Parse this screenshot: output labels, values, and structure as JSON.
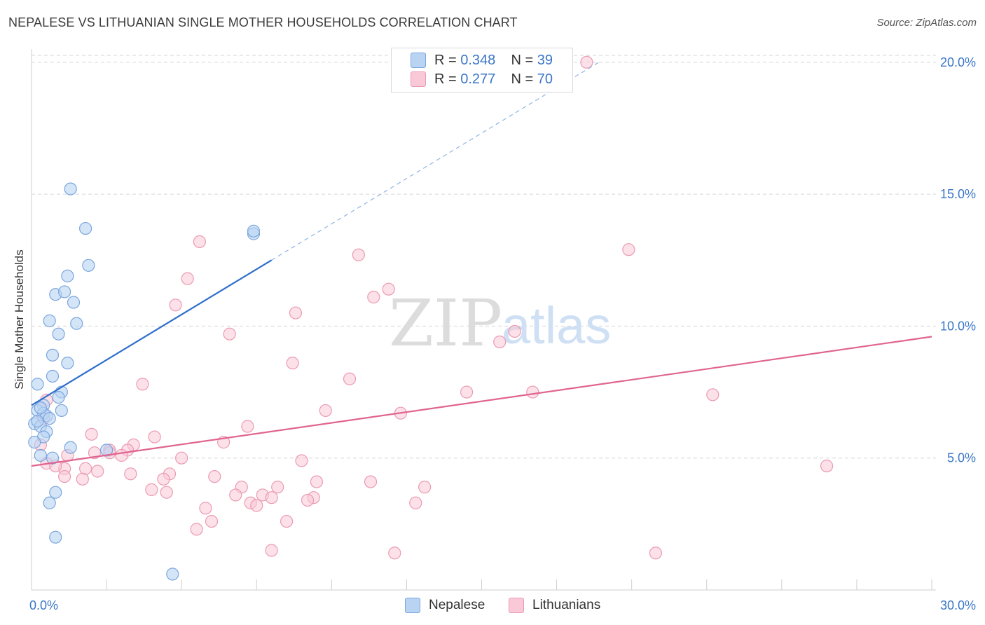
{
  "title": "NEPALESE VS LITHUANIAN SINGLE MOTHER HOUSEHOLDS CORRELATION CHART",
  "source": "Source: ZipAtlas.com",
  "watermark": {
    "zip": "ZIP",
    "atlas": "atlas"
  },
  "legend_top": [
    {
      "r_label": "R = ",
      "r_value": "0.348",
      "n_label": "N = ",
      "n_value": "39"
    },
    {
      "r_label": "R = ",
      "r_value": "0.277",
      "n_label": "N = ",
      "n_value": "70"
    }
  ],
  "colors": {
    "nepalese_fill": "#b9d3f3",
    "nepalese_stroke": "#7aa6dd",
    "nepalese_line": "#2f6fca",
    "lithuanian_fill": "#f9c9d7",
    "lithuanian_stroke": "#eb9ab3",
    "lithuanian_line": "#e0648f",
    "grid": "#d6d6d6",
    "axis_text": "#3a76c8"
  },
  "chart_data": {
    "type": "scatter",
    "title": "NEPALESE VS LITHUANIAN SINGLE MOTHER HOUSEHOLDS CORRELATION CHART",
    "xlabel": "",
    "ylabel": "Single Mother Households",
    "xlim": [
      0,
      30
    ],
    "ylim": [
      0,
      20.5
    ],
    "x_tick_labels": [
      "0.0%",
      "30.0%"
    ],
    "y_ticks": [
      5,
      10,
      15,
      20
    ],
    "y_tick_labels": [
      "5.0%",
      "10.0%",
      "15.0%",
      "20.0%"
    ],
    "legend": [
      "Nepalese",
      "Lithuanians"
    ],
    "series": [
      {
        "name": "Nepalese",
        "r": 0.348,
        "n": 39,
        "trend": {
          "x0": 0.0,
          "y0": 7.0,
          "x1": 8.0,
          "y1": 12.5,
          "dash_to_x": 18.9
        },
        "points": [
          [
            1.3,
            15.2
          ],
          [
            1.8,
            13.7
          ],
          [
            7.4,
            13.5
          ],
          [
            7.4,
            13.6
          ],
          [
            1.9,
            12.3
          ],
          [
            1.2,
            11.9
          ],
          [
            0.8,
            11.2
          ],
          [
            1.1,
            11.3
          ],
          [
            1.4,
            10.9
          ],
          [
            0.6,
            10.2
          ],
          [
            1.5,
            10.1
          ],
          [
            0.9,
            9.7
          ],
          [
            0.7,
            8.9
          ],
          [
            1.2,
            8.6
          ],
          [
            0.7,
            8.1
          ],
          [
            0.2,
            7.8
          ],
          [
            1.0,
            7.5
          ],
          [
            0.9,
            7.3
          ],
          [
            0.4,
            7.0
          ],
          [
            0.2,
            6.8
          ],
          [
            0.4,
            6.7
          ],
          [
            1.0,
            6.8
          ],
          [
            0.5,
            6.6
          ],
          [
            0.6,
            6.5
          ],
          [
            0.1,
            6.3
          ],
          [
            0.3,
            6.2
          ],
          [
            0.5,
            6.0
          ],
          [
            0.4,
            5.8
          ],
          [
            0.1,
            5.6
          ],
          [
            1.3,
            5.4
          ],
          [
            2.5,
            5.3
          ],
          [
            0.3,
            5.1
          ],
          [
            0.7,
            5.0
          ],
          [
            0.8,
            3.7
          ],
          [
            0.6,
            3.3
          ],
          [
            0.8,
            2.0
          ],
          [
            4.7,
            0.6
          ],
          [
            0.3,
            6.9
          ],
          [
            0.2,
            6.4
          ]
        ]
      },
      {
        "name": "Lithuanians",
        "r": 0.277,
        "n": 70,
        "trend": {
          "x0": 0.0,
          "y0": 4.7,
          "x1": 30.0,
          "y1": 9.6
        },
        "points": [
          [
            18.5,
            20.0
          ],
          [
            5.6,
            13.2
          ],
          [
            10.9,
            12.7
          ],
          [
            19.9,
            12.9
          ],
          [
            5.2,
            11.8
          ],
          [
            11.9,
            11.4
          ],
          [
            11.4,
            11.1
          ],
          [
            4.8,
            10.8
          ],
          [
            8.8,
            10.5
          ],
          [
            6.6,
            9.7
          ],
          [
            16.1,
            9.8
          ],
          [
            15.6,
            9.4
          ],
          [
            8.7,
            8.6
          ],
          [
            10.6,
            8.0
          ],
          [
            3.7,
            7.8
          ],
          [
            14.5,
            7.5
          ],
          [
            16.7,
            7.5
          ],
          [
            22.7,
            7.4
          ],
          [
            9.8,
            6.8
          ],
          [
            12.3,
            6.7
          ],
          [
            7.2,
            6.2
          ],
          [
            2.0,
            5.9
          ],
          [
            4.1,
            5.8
          ],
          [
            6.4,
            5.6
          ],
          [
            3.4,
            5.5
          ],
          [
            2.6,
            5.3
          ],
          [
            3.2,
            5.3
          ],
          [
            2.1,
            5.2
          ],
          [
            2.6,
            5.2
          ],
          [
            3.0,
            5.1
          ],
          [
            5.0,
            5.0
          ],
          [
            9.0,
            4.9
          ],
          [
            0.5,
            4.8
          ],
          [
            1.8,
            4.6
          ],
          [
            1.1,
            4.6
          ],
          [
            0.8,
            4.7
          ],
          [
            2.2,
            4.5
          ],
          [
            3.3,
            4.4
          ],
          [
            4.6,
            4.4
          ],
          [
            1.7,
            4.2
          ],
          [
            1.1,
            4.3
          ],
          [
            4.4,
            4.2
          ],
          [
            6.1,
            4.3
          ],
          [
            9.5,
            4.1
          ],
          [
            11.3,
            4.1
          ],
          [
            7.0,
            3.9
          ],
          [
            8.2,
            3.9
          ],
          [
            13.1,
            3.9
          ],
          [
            4.0,
            3.8
          ],
          [
            4.5,
            3.7
          ],
          [
            6.8,
            3.6
          ],
          [
            7.7,
            3.6
          ],
          [
            8.0,
            3.5
          ],
          [
            9.4,
            3.5
          ],
          [
            9.2,
            3.4
          ],
          [
            7.3,
            3.3
          ],
          [
            7.5,
            3.2
          ],
          [
            12.8,
            3.3
          ],
          [
            5.8,
            3.1
          ],
          [
            6.0,
            2.6
          ],
          [
            8.5,
            2.6
          ],
          [
            5.5,
            2.3
          ],
          [
            8.0,
            1.5
          ],
          [
            12.1,
            1.4
          ],
          [
            20.8,
            1.4
          ],
          [
            26.5,
            4.7
          ],
          [
            0.3,
            5.5
          ],
          [
            0.4,
            6.5
          ],
          [
            0.5,
            7.2
          ],
          [
            1.2,
            5.1
          ]
        ]
      }
    ]
  }
}
